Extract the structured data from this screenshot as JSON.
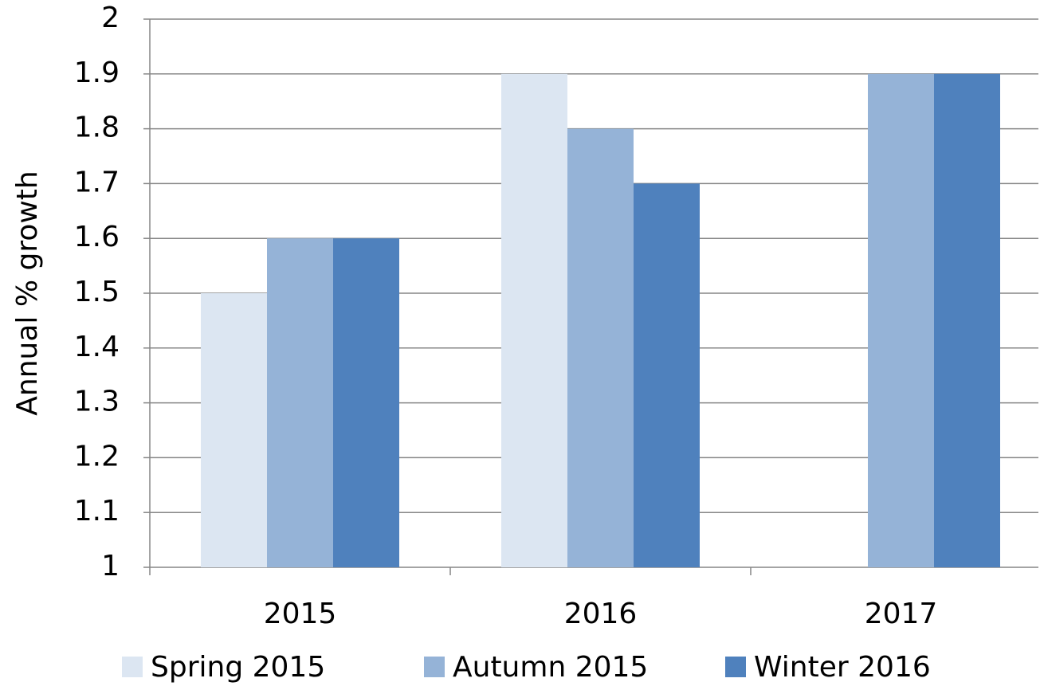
{
  "chart_data": {
    "type": "bar",
    "y_label": "Annual % growth",
    "categories": [
      "2015",
      "2016",
      "2017"
    ],
    "series": [
      {
        "name": "Spring 2015",
        "color": "#dce6f2",
        "values": [
          1.5,
          1.9,
          null
        ]
      },
      {
        "name": "Autumn 2015",
        "color": "#95b3d7",
        "values": [
          1.6,
          1.8,
          1.9
        ]
      },
      {
        "name": "Winter 2016",
        "color": "#4f81bd",
        "values": [
          1.6,
          1.7,
          1.9
        ]
      }
    ],
    "ylim": [
      1,
      2
    ],
    "yticks": [
      1,
      1.1,
      1.2,
      1.3,
      1.4,
      1.5,
      1.6,
      1.7,
      1.8,
      1.9,
      2
    ],
    "grid": true,
    "legend": "bottom"
  }
}
